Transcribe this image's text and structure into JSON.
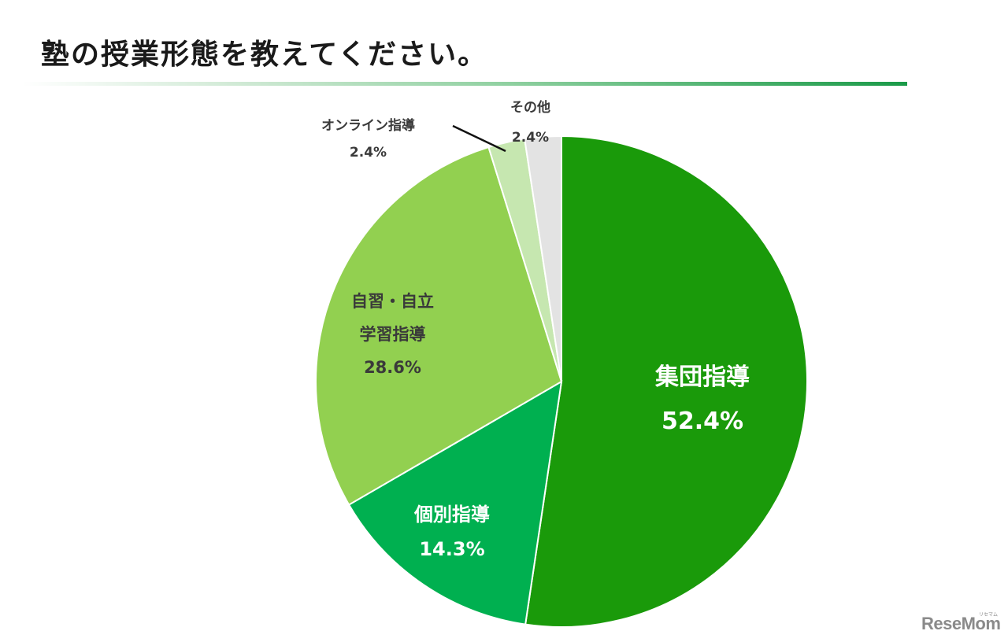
{
  "title": "塾の授業形態を教えてください。",
  "chart_data": {
    "type": "pie",
    "title": "塾の授業形態を教えてください。",
    "categories": [
      "集団指導",
      "個別指導",
      "自習・自立学習指導",
      "オンライン指導",
      "その他"
    ],
    "values": [
      52.4,
      14.3,
      28.6,
      2.4,
      2.4
    ],
    "unit": "%",
    "colors": [
      "#1a9a0a",
      "#00b050",
      "#92d050",
      "#c6e7b0",
      "#e3e3e3"
    ],
    "start_angle": "12 o'clock, clockwise",
    "legend": "none (direct labels)"
  },
  "labels": {
    "group": {
      "name": "集団指導",
      "value": "52.4%"
    },
    "individual": {
      "name": "個別指導",
      "value": "14.3%"
    },
    "self_line1": "自習・自立",
    "self_line2": "学習指導",
    "self_value": "28.6%",
    "online": {
      "name": "オンライン指導",
      "value": "2.4%"
    },
    "other": {
      "name": "その他",
      "value": "2.4%"
    }
  },
  "watermark": {
    "brand": "ReseMom",
    "sub": "リセマム"
  }
}
